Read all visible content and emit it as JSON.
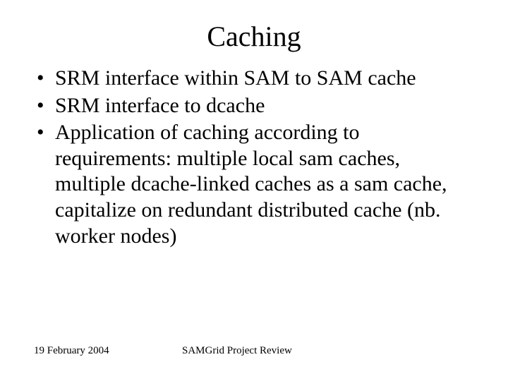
{
  "slide": {
    "title": "Caching",
    "title_fontsize": 40,
    "body_fontsize": 30,
    "footer_fontsize": 15,
    "background_color": "#ffffff",
    "text_color": "#000000",
    "font_family": "Times New Roman",
    "bullets": [
      "SRM interface within SAM to SAM cache",
      "SRM interface to dcache",
      "Application of caching according to requirements: multiple local sam caches, multiple dcache-linked caches as a sam cache, capitalize on redundant distributed cache (nb. worker nodes)"
    ],
    "footer": {
      "date": "19 February 2004",
      "title": "SAMGrid Project Review"
    }
  }
}
